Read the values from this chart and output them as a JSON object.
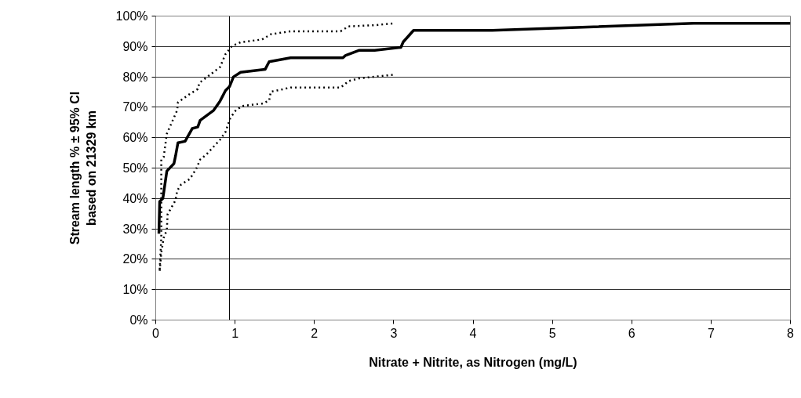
{
  "chart_data": {
    "type": "line",
    "xlabel": "Nitrate + Nitrite, as Nitrogen (mg/L)",
    "ylabel": "Stream length % ± 95% CI\nbased on 21329 km",
    "xlim": [
      0,
      8
    ],
    "xticks": [
      0,
      1,
      2,
      3,
      4,
      5,
      6,
      7,
      8
    ],
    "ylim": [
      0,
      100
    ],
    "yticks": [
      {
        "value": 0,
        "label": "0%"
      },
      {
        "value": 10,
        "label": "10%"
      },
      {
        "value": 20,
        "label": "20%"
      },
      {
        "value": 30,
        "label": "30%"
      },
      {
        "value": 40,
        "label": "40%"
      },
      {
        "value": 50,
        "label": "50%"
      },
      {
        "value": 60,
        "label": "60%"
      },
      {
        "value": 70,
        "label": "70%"
      },
      {
        "value": 80,
        "label": "80%"
      },
      {
        "value": 90,
        "label": "90%"
      },
      {
        "value": 100,
        "label": "100%"
      }
    ],
    "grid": "y",
    "marker": "none",
    "ref_lines": [
      {
        "axis": "x",
        "value": 0.93,
        "label": null,
        "color": "#000000"
      }
    ],
    "series": [
      {
        "color": "#000000",
        "line_style": "solid",
        "x": [
          0.04,
          0.05,
          0.09,
          0.14,
          0.23,
          0.25,
          0.28,
          0.37,
          0.46,
          0.53,
          0.56,
          0.73,
          0.81,
          0.88,
          0.93,
          0.98,
          1.07,
          1.38,
          1.43,
          1.7,
          2.36,
          2.39,
          2.56,
          2.76,
          3.09,
          3.12,
          3.25,
          4.24,
          6.78,
          8
        ],
        "values": [
          28.4,
          39,
          40,
          49,
          51.5,
          54,
          58.3,
          58.8,
          63,
          63.5,
          65.7,
          69,
          72,
          75.5,
          76.8,
          80,
          81.5,
          82.5,
          85,
          86.3,
          86.3,
          87,
          88.7,
          88.7,
          89.7,
          91.5,
          95.3,
          95.3,
          97.6,
          97.6
        ]
      },
      {
        "color": "#000000",
        "line_style": "dotted",
        "x": [
          0.05,
          0.07,
          0.07,
          0.07,
          0.1,
          0.14,
          0.27,
          0.28,
          0.42,
          0.53,
          0.55,
          0.66,
          0.81,
          0.88,
          0.96,
          1.07,
          1.34,
          1.45,
          1.7,
          2.33,
          2.43,
          2.76,
          3.0
        ],
        "values": [
          16.7,
          27,
          40.7,
          52.8,
          53.6,
          61.3,
          69,
          71.6,
          74.2,
          76,
          78,
          80.2,
          83.2,
          87.5,
          90.1,
          91.4,
          92.3,
          94,
          95,
          95,
          96.6,
          97,
          97.6
        ]
      },
      {
        "color": "#000000",
        "line_style": "dotted",
        "x": [
          0.05,
          0.07,
          0.1,
          0.14,
          0.15,
          0.25,
          0.27,
          0.32,
          0.43,
          0.51,
          0.56,
          0.64,
          0.81,
          0.88,
          0.94,
          1.01,
          1.09,
          1.34,
          1.43,
          1.45,
          1.58,
          1.7,
          2.33,
          2.43,
          2.56,
          3.0
        ],
        "values": [
          16.2,
          22.2,
          27,
          29.6,
          34.8,
          39.4,
          42.5,
          44.6,
          46.4,
          49.7,
          52.8,
          54.5,
          59.3,
          61.9,
          66.5,
          69,
          70.4,
          71.2,
          72.2,
          75.1,
          75.8,
          76.5,
          76.5,
          78.6,
          79.5,
          80.7
        ]
      }
    ]
  }
}
